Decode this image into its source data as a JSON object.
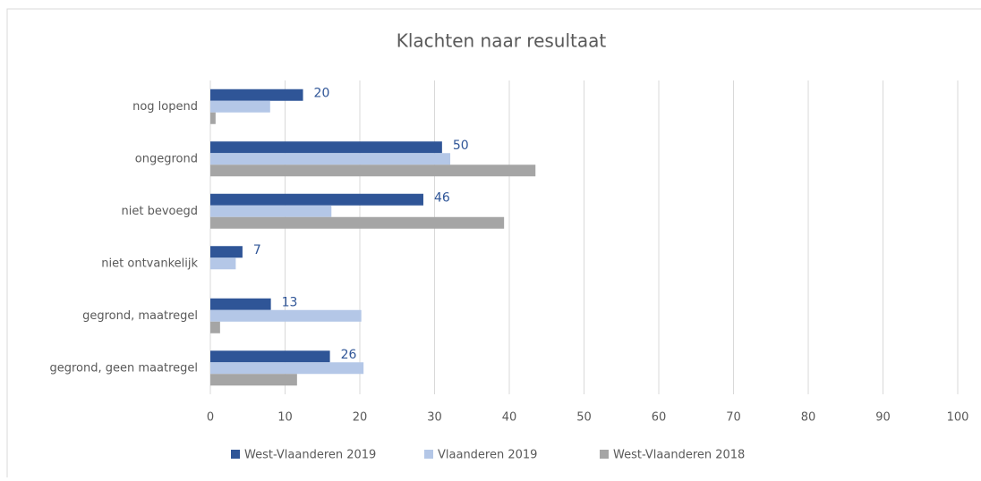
{
  "chart_data": {
    "type": "hbar",
    "title": "Klachten naar resultaat",
    "categories": [
      "nog lopend",
      "ongegrond",
      "niet bevoegd",
      "niet ontvankelijk",
      "gegrond, maatregel",
      "gegrond, geen maatregel"
    ],
    "series": [
      {
        "name": "West-Vlaanderen 2019",
        "color": "#2f5597",
        "values": [
          12.4,
          31.0,
          28.5,
          4.3,
          8.1,
          16.0
        ]
      },
      {
        "name": "Vlaanderen 2019",
        "color": "#b4c7e7",
        "values": [
          8.0,
          32.1,
          16.2,
          3.4,
          20.2,
          20.5
        ]
      },
      {
        "name": "West-Vlaanderen 2018",
        "color": "#a5a5a5",
        "values": [
          0.7,
          43.5,
          39.3,
          0,
          1.3,
          11.6
        ]
      }
    ],
    "annotations": [
      20,
      50,
      46,
      7,
      13,
      26
    ],
    "xlim": [
      0,
      100
    ],
    "xticks": [
      0,
      10,
      20,
      30,
      40,
      50,
      60,
      70,
      80,
      90,
      100
    ],
    "grid": true,
    "legend": "bottom"
  }
}
